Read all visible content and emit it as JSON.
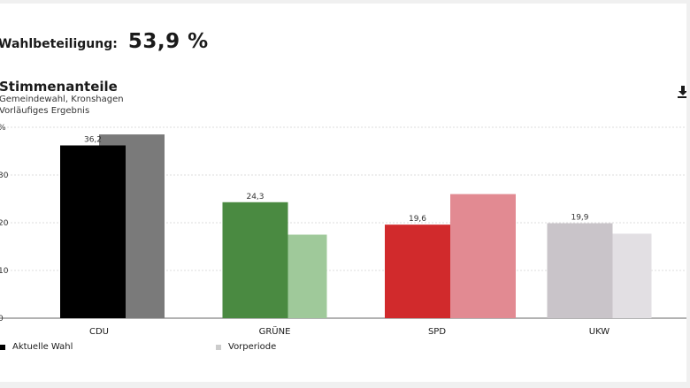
{
  "turnout": {
    "label": "Wahlbeteiligung:",
    "value": "53,9 %"
  },
  "chart": {
    "title": "Stimmenanteile",
    "subtitle_1": "Gemeindewahl, Kronshagen",
    "subtitle_2": "Vorläufiges Ergebnis",
    "download_icon": "download-icon"
  },
  "legend": {
    "current": {
      "label": "Aktuelle Wahl",
      "color": "#000000"
    },
    "previous": {
      "label": "Vorperiode",
      "color": "#cccccc"
    }
  },
  "chart_data": {
    "type": "bar",
    "title": "Stimmenanteile",
    "ylabel": "%",
    "ylim": [
      0,
      40
    ],
    "yticks": [
      0,
      10,
      20,
      30,
      40
    ],
    "ytick_labels": [
      "0",
      "10",
      "20",
      "30",
      "%"
    ],
    "grid": true,
    "legend_position": "bottom-left",
    "categories": [
      "CDU",
      "GRÜNE",
      "SPD",
      "UKW"
    ],
    "series": [
      {
        "name": "Aktuelle Wahl",
        "values": [
          36.2,
          24.3,
          19.6,
          19.9
        ],
        "labels": [
          "36,2",
          "24,3",
          "19,6",
          "19,9"
        ],
        "colors": [
          "#000000",
          "#4a8a41",
          "#d12a2c",
          "#c9c4c9"
        ]
      },
      {
        "name": "Vorperiode",
        "values": [
          38.5,
          17.5,
          26.0,
          17.7
        ],
        "colors": [
          "#7a7a7a",
          "#9fc99a",
          "#e28a92",
          "#e2dfe3"
        ]
      }
    ]
  }
}
